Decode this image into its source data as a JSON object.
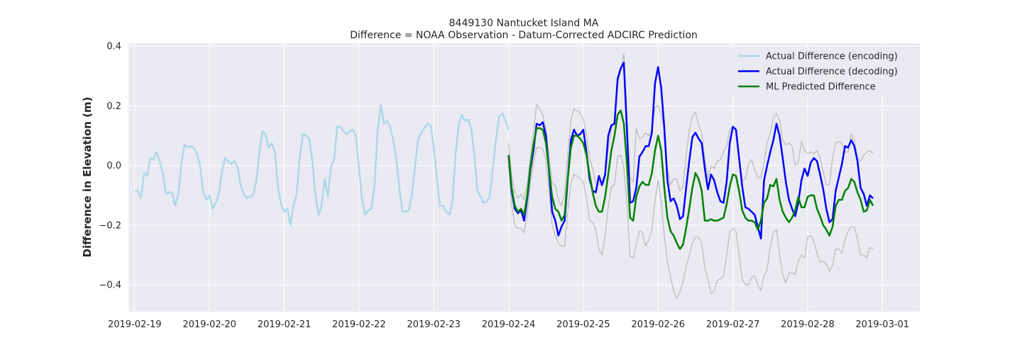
{
  "chart_data": {
    "type": "line",
    "title": "8449130 Nantucket Island MA",
    "subtitle": "Difference = NOAA Observation - Datum-Corrected ADCIRC Prediction",
    "xlabel": "",
    "ylabel": "Difference in Elevation (m)",
    "xlim": [
      "2019-02-18 22:00",
      "2019-03-01 12:00"
    ],
    "ylim": [
      -0.49,
      0.41
    ],
    "x_ticks": [
      "2019-02-19",
      "2019-02-20",
      "2019-02-21",
      "2019-02-22",
      "2019-02-23",
      "2019-02-24",
      "2019-02-25",
      "2019-02-26",
      "2019-02-27",
      "2019-02-28",
      "2019-03-01"
    ],
    "y_ticks": [
      -0.4,
      -0.2,
      0.0,
      0.2,
      0.4
    ],
    "y_tick_labels": [
      "−0.4",
      "−0.2",
      "0.0",
      "0.2",
      "0.4"
    ],
    "grid": true,
    "legend_position": "top-right",
    "colors": {
      "plot_background": "#eaeaf2",
      "grid": "#ffffff",
      "encoding": "#add8e6",
      "decoding": "#0000ff",
      "predicted": "#008000",
      "bounds": "#b0b0b0"
    },
    "series": [
      {
        "name": "Actual Difference (encoding)",
        "color": "#add8e6",
        "x_start": "2019-02-19 00:00",
        "step_hours": 1,
        "values": [
          -0.085,
          -0.085,
          -0.11,
          -0.025,
          -0.035,
          0.025,
          0.02,
          0.045,
          0.015,
          -0.025,
          -0.095,
          -0.09,
          -0.09,
          -0.135,
          -0.095,
          0.01,
          0.07,
          0.06,
          0.065,
          0.06,
          0.04,
          0.0,
          -0.09,
          -0.115,
          -0.1,
          -0.145,
          -0.125,
          -0.095,
          -0.02,
          0.025,
          0.015,
          0.005,
          0.015,
          -0.005,
          -0.065,
          -0.095,
          -0.11,
          -0.105,
          -0.1,
          -0.055,
          0.04,
          0.115,
          0.105,
          0.06,
          0.075,
          0.045,
          -0.075,
          -0.13,
          -0.155,
          -0.145,
          -0.2,
          -0.135,
          -0.095,
          0.03,
          0.105,
          0.1,
          0.09,
          0.015,
          -0.1,
          -0.165,
          -0.135,
          -0.045,
          -0.105,
          -0.005,
          0.02,
          0.13,
          0.13,
          0.115,
          0.105,
          0.115,
          0.12,
          0.1,
          -0.01,
          -0.115,
          -0.165,
          -0.15,
          -0.145,
          -0.065,
          0.12,
          0.205,
          0.14,
          0.15,
          0.13,
          0.085,
          0.02,
          -0.08,
          -0.155,
          -0.155,
          -0.15,
          -0.095,
          -0.0,
          0.09,
          0.11,
          0.125,
          0.14,
          0.135,
          0.06,
          -0.045,
          -0.135,
          -0.135,
          -0.155,
          -0.165,
          -0.12,
          0.04,
          0.135,
          0.17,
          0.15,
          0.155,
          0.125,
          0.04,
          -0.085,
          -0.105,
          -0.125,
          -0.12,
          -0.105,
          -0.005,
          0.09,
          0.165,
          0.175,
          0.15,
          0.12
        ]
      },
      {
        "name": "Actual Difference (decoding)",
        "color": "#0000ff",
        "x_start": "2019-02-24 00:00",
        "step_hours": 1,
        "values": [
          0.035,
          -0.085,
          -0.145,
          -0.16,
          -0.15,
          -0.185,
          -0.11,
          -0.015,
          0.05,
          0.14,
          0.135,
          0.145,
          0.1,
          -0.02,
          -0.155,
          -0.185,
          -0.235,
          -0.205,
          -0.185,
          -0.045,
          0.085,
          0.12,
          0.1,
          0.105,
          0.12,
          0.045,
          -0.045,
          -0.085,
          -0.09,
          -0.035,
          -0.065,
          -0.03,
          0.1,
          0.135,
          0.14,
          0.29,
          0.325,
          0.345,
          0.12,
          -0.125,
          -0.12,
          -0.075,
          0.03,
          0.045,
          0.065,
          0.065,
          0.11,
          0.275,
          0.33,
          0.26,
          0.125,
          -0.05,
          -0.12,
          -0.11,
          -0.135,
          -0.18,
          -0.17,
          -0.075,
          0.015,
          0.095,
          0.11,
          0.09,
          0.075,
          -0.01,
          -0.08,
          -0.03,
          -0.05,
          -0.09,
          -0.12,
          -0.125,
          -0.055,
          0.075,
          0.13,
          0.12,
          0.025,
          -0.07,
          -0.14,
          -0.145,
          -0.155,
          -0.165,
          -0.205,
          -0.245,
          -0.05,
          0.0,
          0.045,
          0.085,
          0.14,
          0.1,
          0.025,
          -0.055,
          -0.115,
          -0.145,
          -0.17,
          -0.125,
          -0.05,
          -0.01,
          -0.035,
          0.01,
          0.025,
          0.015,
          -0.03,
          -0.08,
          -0.145,
          -0.19,
          -0.18,
          -0.085,
          -0.04,
          0.005,
          0.065,
          0.06,
          0.085,
          0.065,
          0.015,
          -0.075,
          -0.095,
          -0.135,
          -0.1,
          -0.11
        ]
      },
      {
        "name": "ML Predicted Difference",
        "color": "#008000",
        "x_start": "2019-02-24 00:00",
        "step_hours": 1,
        "values": [
          0.035,
          -0.075,
          -0.135,
          -0.155,
          -0.145,
          -0.165,
          -0.1,
          -0.005,
          0.07,
          0.125,
          0.125,
          0.12,
          0.075,
          -0.015,
          -0.105,
          -0.145,
          -0.155,
          -0.185,
          -0.165,
          -0.045,
          0.06,
          0.1,
          0.1,
          0.09,
          0.075,
          0.035,
          -0.03,
          -0.09,
          -0.135,
          -0.155,
          -0.155,
          -0.105,
          -0.03,
          0.05,
          0.1,
          0.17,
          0.185,
          0.14,
          0.005,
          -0.175,
          -0.185,
          -0.105,
          -0.07,
          -0.055,
          -0.065,
          -0.065,
          -0.025,
          0.05,
          0.1,
          0.05,
          -0.075,
          -0.175,
          -0.22,
          -0.235,
          -0.26,
          -0.28,
          -0.265,
          -0.21,
          -0.145,
          -0.075,
          -0.025,
          -0.045,
          -0.085,
          -0.185,
          -0.185,
          -0.18,
          -0.185,
          -0.185,
          -0.18,
          -0.175,
          -0.13,
          -0.07,
          -0.03,
          -0.035,
          -0.085,
          -0.15,
          -0.175,
          -0.185,
          -0.185,
          -0.19,
          -0.215,
          -0.185,
          -0.125,
          -0.11,
          -0.065,
          -0.07,
          -0.045,
          -0.115,
          -0.155,
          -0.175,
          -0.19,
          -0.175,
          -0.15,
          -0.105,
          -0.14,
          -0.14,
          -0.105,
          -0.1,
          -0.1,
          -0.145,
          -0.17,
          -0.2,
          -0.215,
          -0.235,
          -0.205,
          -0.135,
          -0.115,
          -0.115,
          -0.085,
          -0.075,
          -0.045,
          -0.055,
          -0.09,
          -0.115,
          -0.155,
          -0.15,
          -0.115,
          -0.135
        ]
      },
      {
        "name": "",
        "color": "#b0b0b0",
        "x_start": "2019-02-24 00:00",
        "step_hours": 1,
        "values": [
          0.075,
          -0.03,
          -0.09,
          -0.11,
          -0.095,
          -0.115,
          -0.06,
          0.03,
          0.11,
          0.205,
          0.19,
          0.17,
          0.12,
          0.035,
          -0.06,
          -0.065,
          -0.115,
          -0.135,
          -0.1,
          0.04,
          0.15,
          0.19,
          0.185,
          0.175,
          0.155,
          0.105,
          0.025,
          -0.01,
          -0.06,
          -0.06,
          -0.07,
          -0.045,
          0.055,
          0.12,
          0.15,
          0.27,
          0.32,
          0.375,
          0.17,
          -0.04,
          -0.055,
          0.125,
          0.09,
          0.095,
          0.11,
          0.1,
          0.12,
          0.195,
          0.2,
          0.175,
          0.12,
          -0.01,
          -0.065,
          -0.045,
          -0.045,
          -0.085,
          -0.07,
          0.03,
          0.12,
          0.165,
          0.18,
          0.135,
          0.11,
          0.025,
          -0.045,
          0.0,
          -0.01,
          0.015,
          0.02,
          0.045,
          0.065,
          0.12,
          0.13,
          0.12,
          0.015,
          -0.05,
          -0.045,
          0.005,
          0.02,
          -0.015,
          -0.04,
          -0.04,
          0.01,
          0.075,
          0.11,
          0.16,
          0.175,
          0.15,
          0.085,
          0.07,
          0.075,
          0.065,
          0.0,
          0.01,
          0.08,
          0.05,
          0.04,
          0.045,
          0.04,
          0.05,
          0.025,
          -0.02,
          -0.065,
          -0.065,
          0.025,
          0.075,
          0.08,
          0.075,
          0.045,
          0.045,
          0.105,
          0.085,
          0.025,
          0.015,
          0.035,
          0.045,
          0.05,
          0.04
        ]
      },
      {
        "name": "",
        "color": "#b0b0b0",
        "x_start": "2019-02-24 00:00",
        "step_hours": 1,
        "values": [
          0.0,
          -0.13,
          -0.2,
          -0.21,
          -0.21,
          -0.225,
          -0.165,
          -0.06,
          0.01,
          0.06,
          0.06,
          0.055,
          0.02,
          -0.085,
          -0.2,
          -0.235,
          -0.26,
          -0.27,
          -0.27,
          -0.155,
          -0.06,
          -0.03,
          -0.035,
          -0.045,
          -0.055,
          -0.11,
          -0.185,
          -0.19,
          -0.215,
          -0.28,
          -0.3,
          -0.235,
          -0.14,
          -0.07,
          -0.065,
          0.03,
          0.035,
          -0.01,
          -0.13,
          -0.305,
          -0.31,
          -0.265,
          -0.22,
          -0.225,
          -0.27,
          -0.25,
          -0.215,
          -0.12,
          -0.05,
          -0.12,
          -0.235,
          -0.325,
          -0.375,
          -0.42,
          -0.445,
          -0.425,
          -0.39,
          -0.34,
          -0.3,
          -0.26,
          -0.24,
          -0.24,
          -0.26,
          -0.345,
          -0.38,
          -0.43,
          -0.42,
          -0.385,
          -0.38,
          -0.37,
          -0.3,
          -0.225,
          -0.21,
          -0.22,
          -0.3,
          -0.38,
          -0.4,
          -0.4,
          -0.375,
          -0.37,
          -0.4,
          -0.42,
          -0.37,
          -0.35,
          -0.27,
          -0.225,
          -0.215,
          -0.3,
          -0.365,
          -0.395,
          -0.36,
          -0.36,
          -0.365,
          -0.32,
          -0.3,
          -0.31,
          -0.24,
          -0.235,
          -0.255,
          -0.295,
          -0.325,
          -0.32,
          -0.33,
          -0.355,
          -0.335,
          -0.28,
          -0.28,
          -0.295,
          -0.25,
          -0.22,
          -0.205,
          -0.205,
          -0.25,
          -0.3,
          -0.3,
          -0.31,
          -0.275,
          -0.28
        ]
      }
    ],
    "legend": [
      {
        "label": "Actual Difference (encoding)",
        "color": "#add8e6"
      },
      {
        "label": "Actual Difference (decoding)",
        "color": "#0000ff"
      },
      {
        "label": "ML Predicted Difference",
        "color": "#008000"
      }
    ]
  }
}
